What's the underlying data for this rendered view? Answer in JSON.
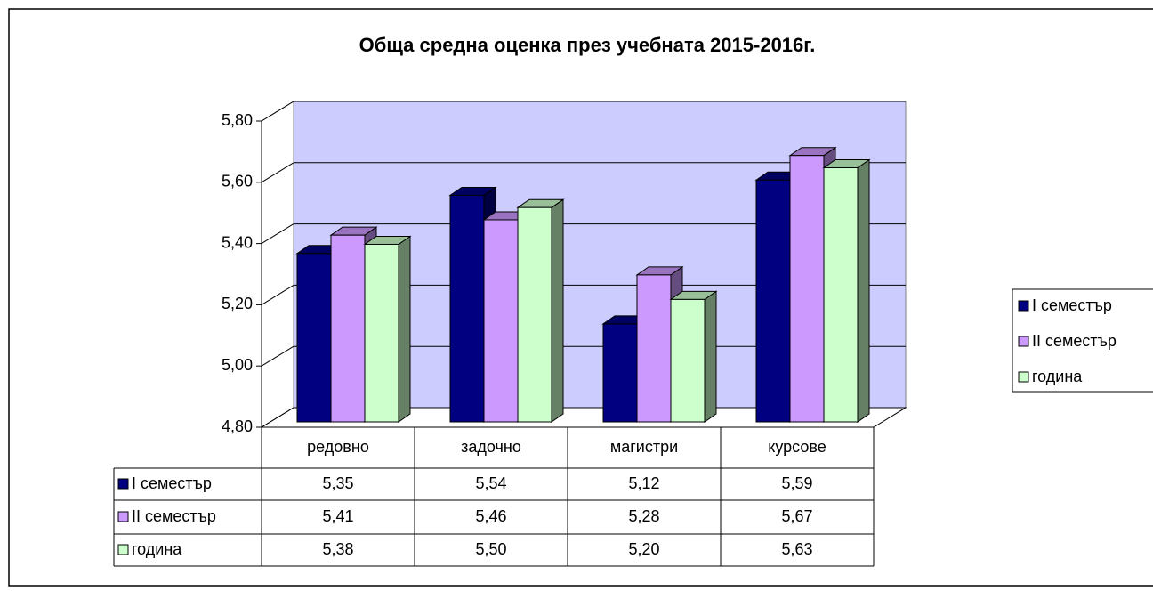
{
  "chart_data": {
    "type": "bar3d",
    "title": "Обща средна оценка през учебната 2015-2016г.",
    "categories": [
      "редовно",
      "задочно",
      "магистри",
      "курсове"
    ],
    "series": [
      {
        "name": "I семестър",
        "color": "#000080",
        "values": [
          5.35,
          5.54,
          5.12,
          5.59
        ],
        "value_labels": [
          "5,35",
          "5,54",
          "5,12",
          "5,59"
        ]
      },
      {
        "name": "II семестър",
        "color": "#cc99ff",
        "values": [
          5.41,
          5.46,
          5.28,
          5.67
        ],
        "value_labels": [
          "5,41",
          "5,46",
          "5,28",
          "5,67"
        ]
      },
      {
        "name": "година",
        "color": "#ccffcc",
        "values": [
          5.38,
          5.5,
          5.2,
          5.63
        ],
        "value_labels": [
          "5,38",
          "5,50",
          "5,20",
          "5,63"
        ]
      }
    ],
    "ylim": [
      4.8,
      5.8
    ],
    "yticks": [
      {
        "value": 4.8,
        "label": "4,80"
      },
      {
        "value": 5.0,
        "label": "5,00"
      },
      {
        "value": 5.2,
        "label": "5,20"
      },
      {
        "value": 5.4,
        "label": "5,40"
      },
      {
        "value": 5.6,
        "label": "5,60"
      },
      {
        "value": 5.8,
        "label": "5,80"
      }
    ],
    "grid": true,
    "legend": "right",
    "wall_color": "#ccccff"
  }
}
